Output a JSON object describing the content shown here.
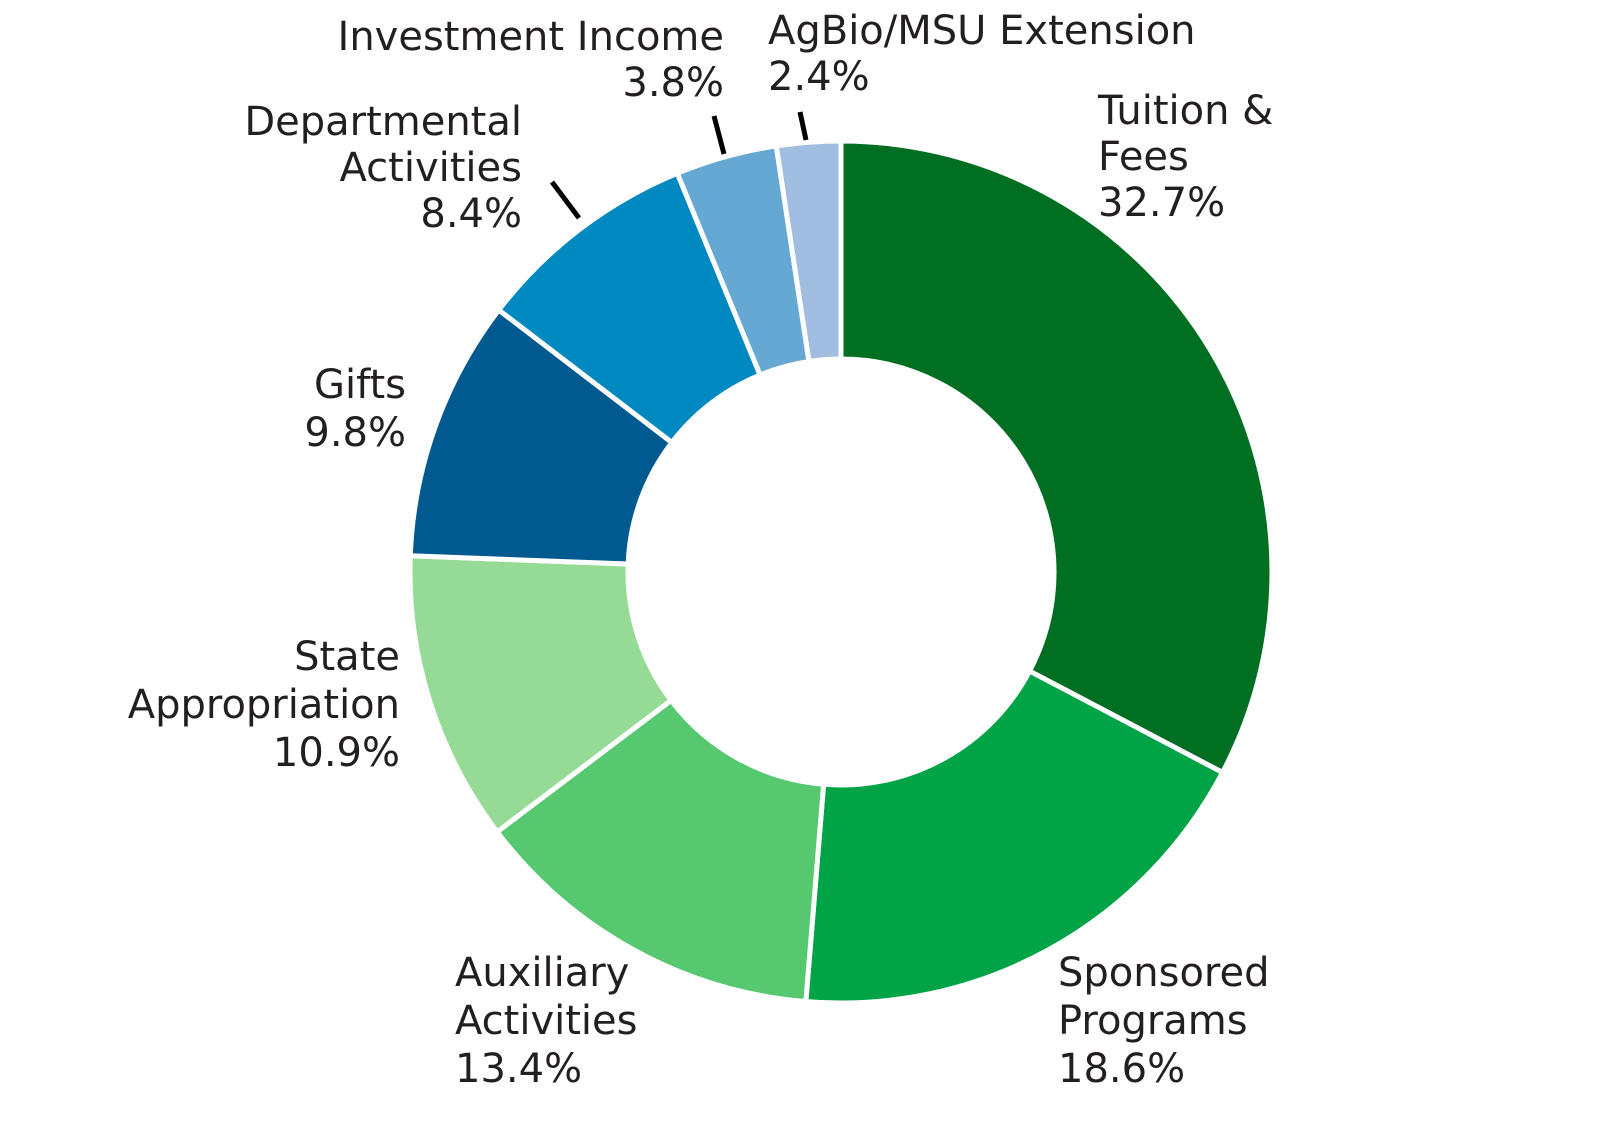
{
  "chart_data": {
    "type": "pie",
    "variant": "donut",
    "legend": "none",
    "slices": [
      {
        "name": "Tuition & Fees",
        "label_lines": [
          "Tuition &",
          "Fees"
        ],
        "value": 32.7,
        "display": "32.7%",
        "color": "#006f22"
      },
      {
        "name": "Sponsored Programs",
        "label_lines": [
          "Sponsored",
          "Programs"
        ],
        "value": 18.6,
        "display": "18.6%",
        "color": "#00a446"
      },
      {
        "name": "Auxiliary Activities",
        "label_lines": [
          "Auxiliary",
          "Activities"
        ],
        "value": 13.4,
        "display": "13.4%",
        "color": "#56c86f"
      },
      {
        "name": "State Appropriation",
        "label_lines": [
          "State",
          "Appropriation"
        ],
        "value": 10.9,
        "display": "10.9%",
        "color": "#95db96"
      },
      {
        "name": "Gifts",
        "label_lines": [
          "Gifts"
        ],
        "value": 9.8,
        "display": "9.8%",
        "color": "#00598f"
      },
      {
        "name": "Departmental Activities",
        "label_lines": [
          "Departmental",
          "Activities"
        ],
        "value": 8.4,
        "display": "8.4%",
        "color": "#0089c1"
      },
      {
        "name": "Investment Income",
        "label_lines": [
          "Investment Income"
        ],
        "value": 3.8,
        "display": "3.8%",
        "color": "#65a8d3"
      },
      {
        "name": "AgBio/MSU Extension",
        "label_lines": [
          "AgBio/MSU Extension"
        ],
        "value": 2.4,
        "display": "2.4%",
        "color": "#a1bddf"
      }
    ]
  }
}
